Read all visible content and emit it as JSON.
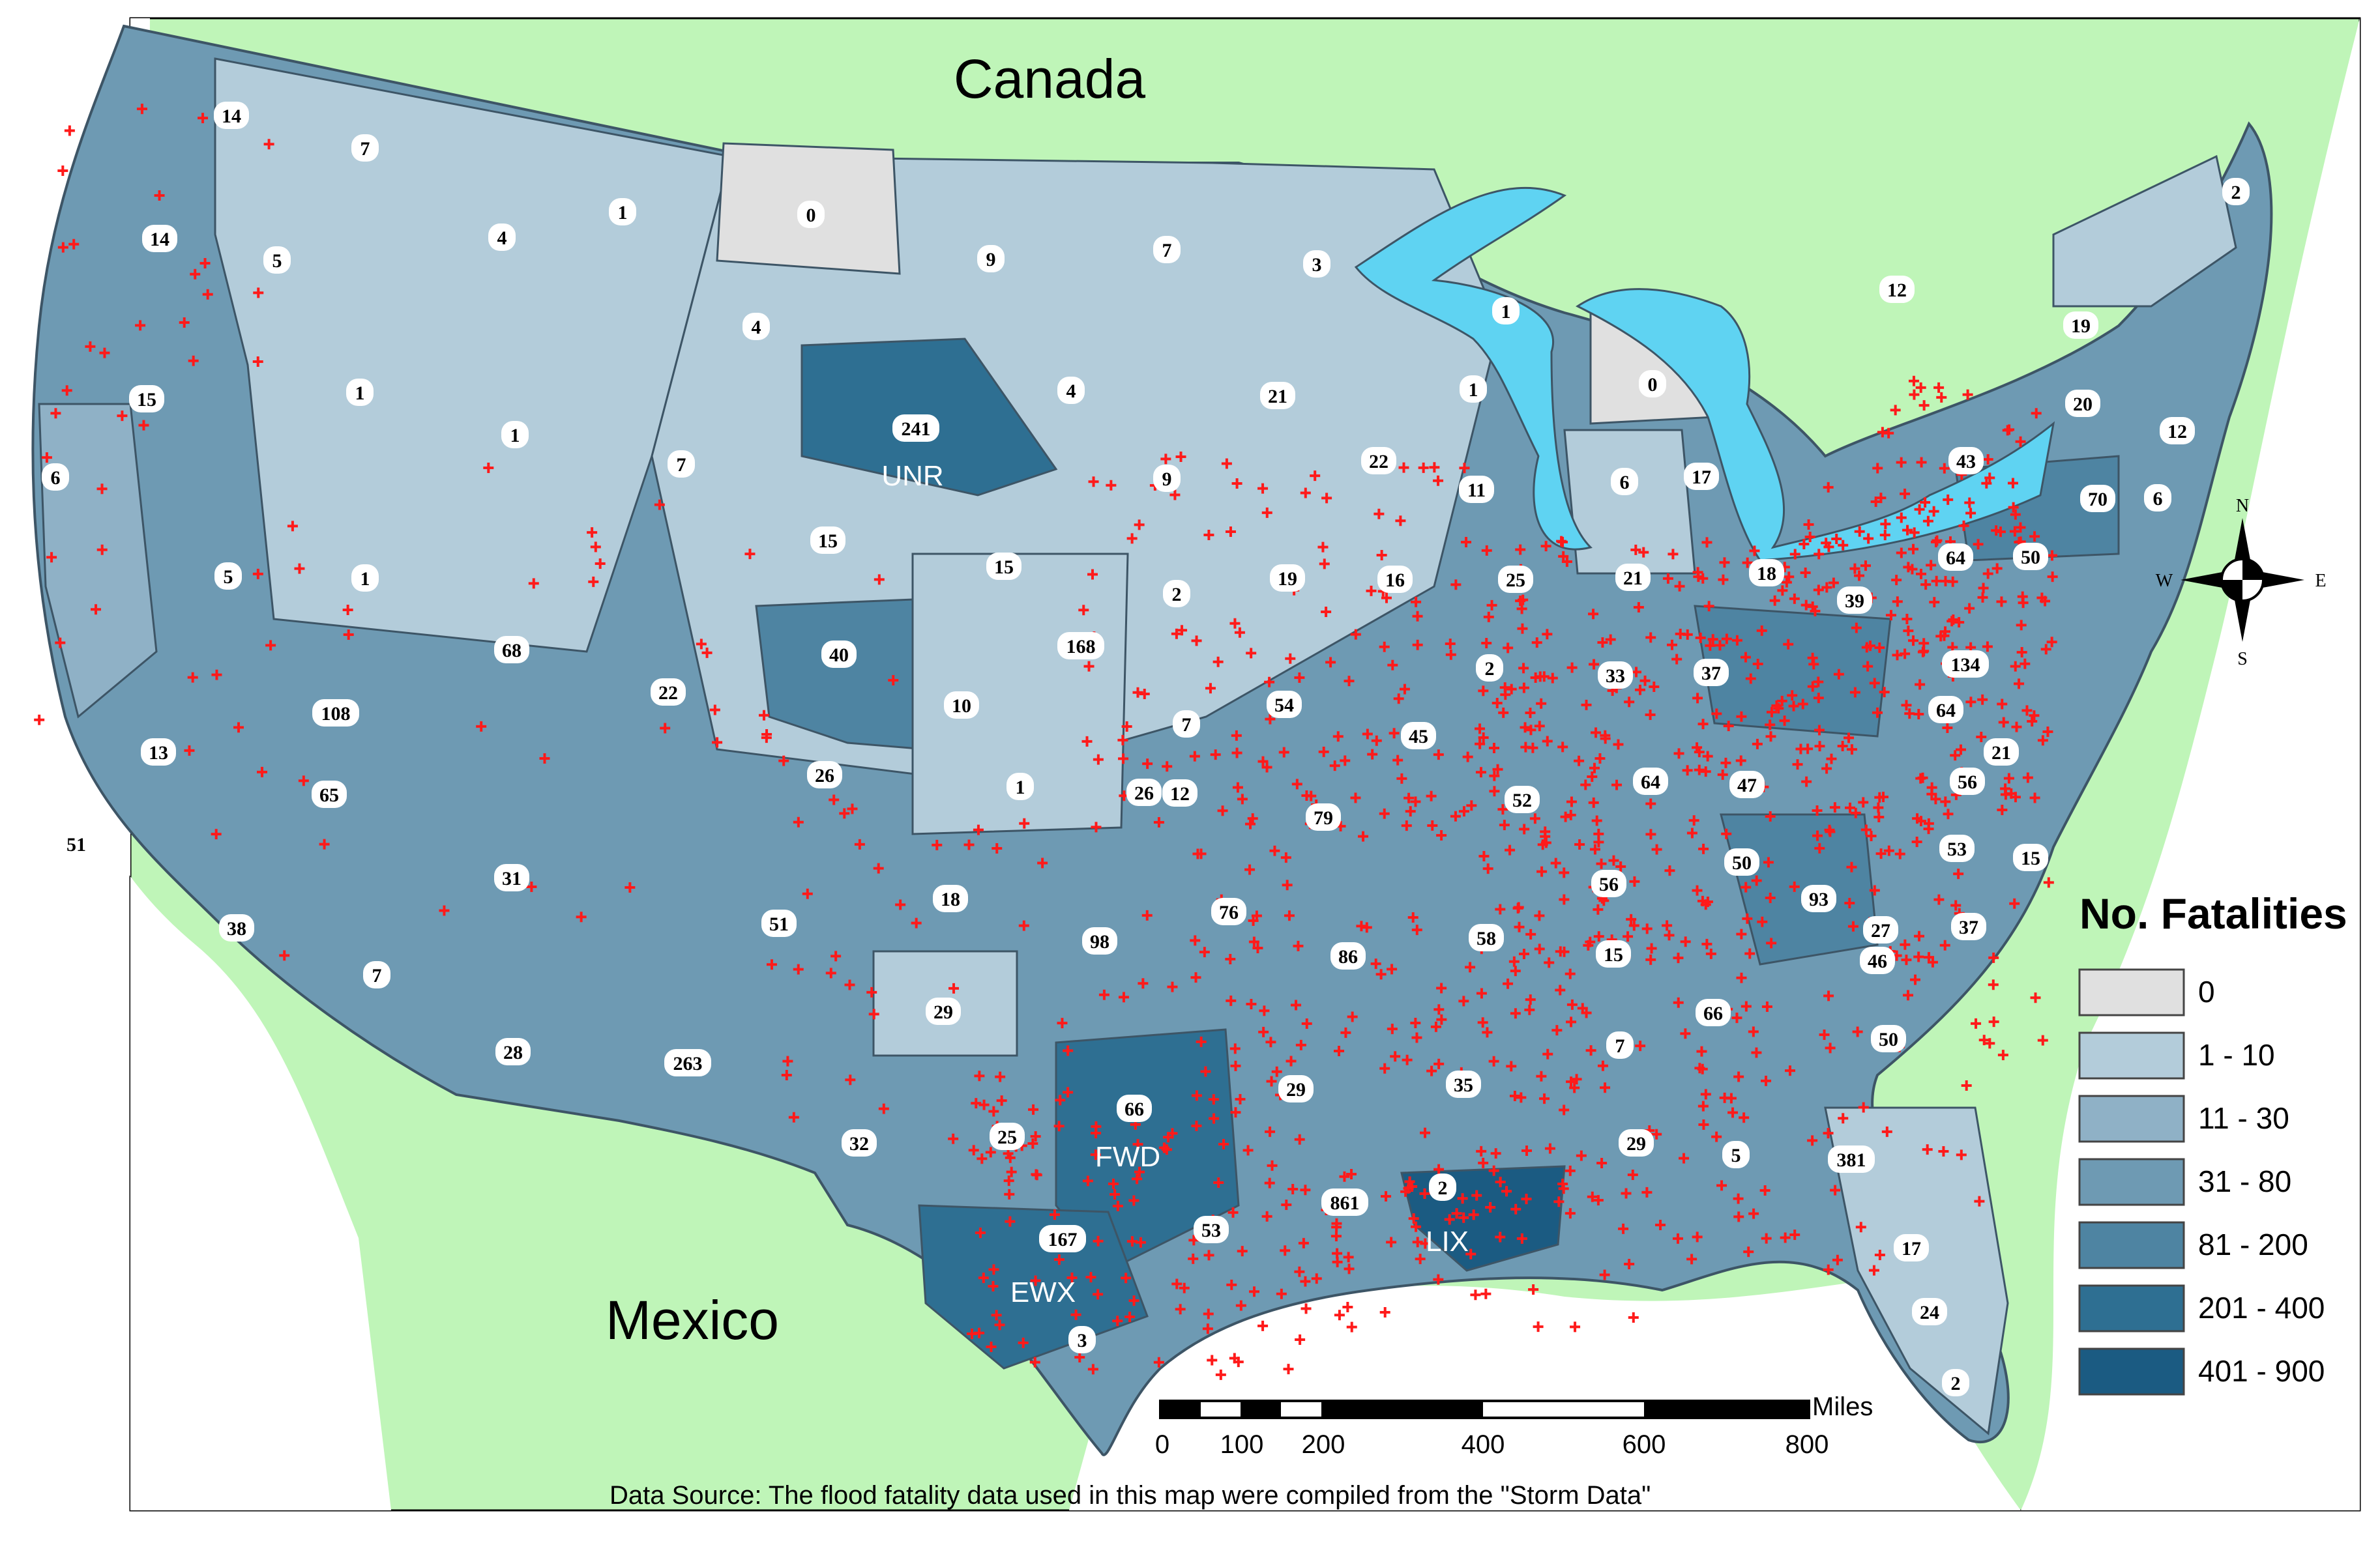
{
  "labels": {
    "canada": "Canada",
    "mexico": "Mexico"
  },
  "legend": {
    "title": "No. Fatalities",
    "classes": [
      {
        "label": "0",
        "color": "#e0e0e0"
      },
      {
        "label": "1 - 10",
        "color": "#b3ccda"
      },
      {
        "label": "11 - 30",
        "color": "#8fb1c6"
      },
      {
        "label": "31 - 80",
        "color": "#6e9ab3"
      },
      {
        "label": "81 - 200",
        "color": "#4e84a2"
      },
      {
        "label": "201 - 400",
        "color": "#2e6f92"
      },
      {
        "label": "401 - 900",
        "color": "#1b5b82"
      }
    ]
  },
  "scale_bar": {
    "unit": "Miles",
    "ticks": [
      "0",
      "100",
      "200",
      "400",
      "600",
      "800"
    ]
  },
  "data_source": "Data Source: The flood fatality data used in this map were compiled from the \"Storm Data\"",
  "compass": {
    "n": "N",
    "s": "S",
    "e": "E",
    "w": "W"
  },
  "colors": {
    "land_outside": "#bff5b8",
    "water": "#5fd3f2",
    "ocean": "#ffffff",
    "marker": "#ff1a1a",
    "border": "#3d5566"
  },
  "offices": [
    {
      "code": "UNR",
      "count": "241"
    },
    {
      "code": "FWD",
      "count": "263"
    },
    {
      "code": "EWX",
      "count": "381"
    },
    {
      "code": "LIX",
      "count": "861"
    }
  ],
  "counts": [
    "14",
    "7",
    "1",
    "0",
    "9",
    "7",
    "3",
    "2",
    "14",
    "5",
    "4",
    "4",
    "1",
    "12",
    "19",
    "15",
    "1",
    "1",
    "241",
    "4",
    "21",
    "1",
    "0",
    "20",
    "43",
    "12",
    "6",
    "7",
    "9",
    "22",
    "11",
    "6",
    "17",
    "6",
    "70",
    "5",
    "1",
    "15",
    "15",
    "2",
    "19",
    "16",
    "25",
    "21",
    "18",
    "39",
    "64",
    "50",
    "68",
    "40",
    "168",
    "2",
    "33",
    "37",
    "64",
    "134",
    "108",
    "22",
    "10",
    "7",
    "12",
    "54",
    "45",
    "64",
    "47",
    "56",
    "21",
    "13",
    "65",
    "26",
    "1",
    "26",
    "79",
    "52",
    "56",
    "50",
    "93",
    "53",
    "15",
    "51",
    "31",
    "51",
    "18",
    "98",
    "76",
    "86",
    "58",
    "15",
    "66",
    "27",
    "37",
    "38",
    "7",
    "29",
    "46",
    "28",
    "263",
    "66",
    "29",
    "35",
    "7",
    "50",
    "32",
    "25",
    "29",
    "5",
    "381",
    "167",
    "53",
    "861",
    "2",
    "17",
    "24",
    "3",
    "2"
  ]
}
